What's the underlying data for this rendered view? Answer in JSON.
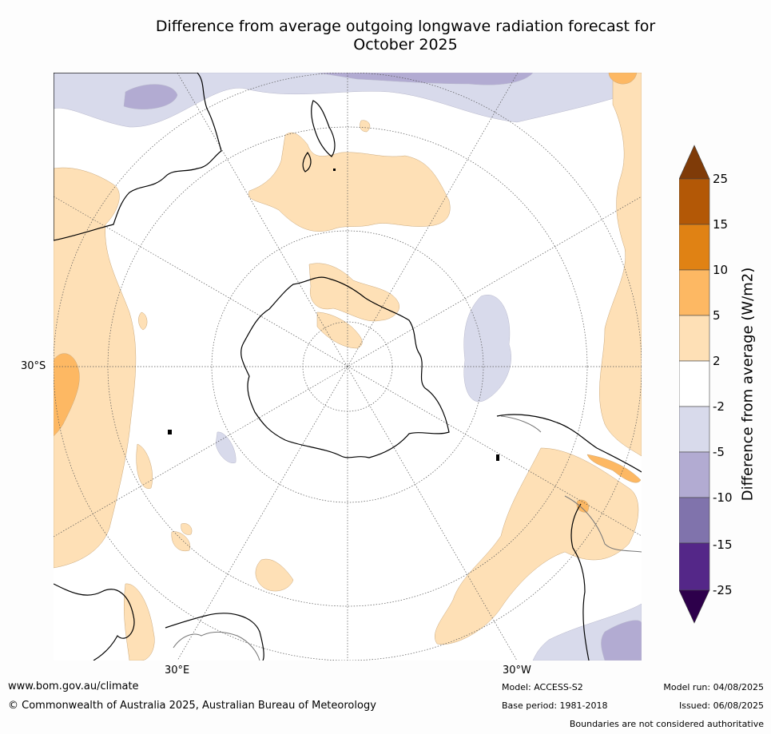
{
  "title": {
    "line1": "Difference from average outgoing longwave radiation forecast for",
    "line2": "October 2025"
  },
  "map": {
    "projection": "south-polar-stereographic",
    "longitude_labels": [
      "30°E",
      "30°W"
    ],
    "latitude_labels": [
      "30°S"
    ]
  },
  "colorbar": {
    "label": "Difference from average (W/m2)",
    "levels": [
      "25",
      "15",
      "10",
      "5",
      "2",
      "-2",
      "-5",
      "-10",
      "-15",
      "-25"
    ],
    "colors": {
      "over": "#7f3b08",
      "b15_25": "#b35806",
      "b10_15": "#e08214",
      "b5_10": "#fdb863",
      "b2_5": "#fee0b6",
      "neutral": "#ffffff",
      "m2_m5": "#d8daeb",
      "m5_m10": "#b2abd2",
      "m10_m15": "#8073ac",
      "m15_m25": "#542788",
      "under": "#2d004b"
    }
  },
  "footer": {
    "website": "www.bom.gov.au/climate",
    "copyright": "© Commonwealth of Australia 2025, Australian Bureau of Meteorology",
    "model": "Model: ACCESS-S2",
    "base_period": "Base period: 1981-2018",
    "model_run": "Model run: 04/08/2025",
    "issued": "Issued: 06/08/2025",
    "disclaimer": "Boundaries are not considered authoritative"
  }
}
